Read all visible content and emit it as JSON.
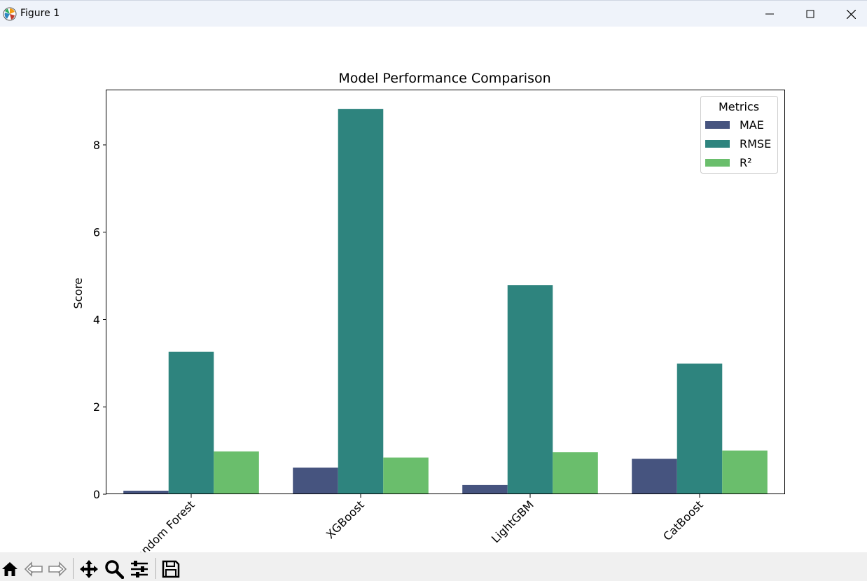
{
  "window": {
    "title": "Figure 1"
  },
  "toolbar": {
    "buttons": [
      {
        "name": "home-icon"
      },
      {
        "name": "back-arrow-icon"
      },
      {
        "name": "forward-arrow-icon"
      },
      {
        "name": "pan-icon"
      },
      {
        "name": "zoom-icon"
      },
      {
        "name": "configure-subplots-icon"
      },
      {
        "name": "save-icon"
      }
    ]
  },
  "chart_data": {
    "type": "bar",
    "title": "Model Performance Comparison",
    "xlabel": "",
    "ylabel": "Score",
    "ylim": [
      0,
      9.25
    ],
    "yticks": [
      0,
      2,
      4,
      6,
      8
    ],
    "categories": [
      "Random Forest",
      "XGBoost",
      "LightGBM",
      "CatBoost"
    ],
    "series": [
      {
        "name": "MAE",
        "color": "#46547f",
        "values": [
          0.08,
          0.61,
          0.21,
          0.81
        ]
      },
      {
        "name": "RMSE",
        "color": "#2e847e",
        "values": [
          3.26,
          8.82,
          4.79,
          2.99
        ]
      },
      {
        "name": "R²",
        "color": "#6abe6c",
        "values": [
          0.98,
          0.84,
          0.96,
          1.0
        ]
      }
    ],
    "legend": {
      "title": "Metrics",
      "placement": "top-right"
    },
    "grid": false,
    "xtick_rotation": 45
  }
}
